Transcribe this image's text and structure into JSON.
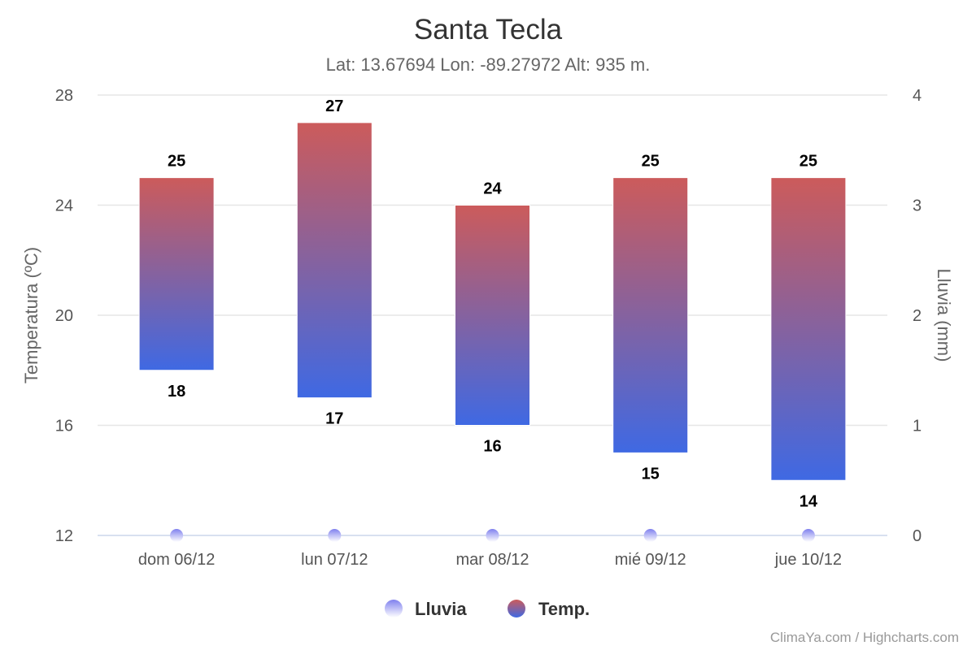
{
  "chart_data": {
    "type": "bar",
    "title": "Santa Tecla",
    "subtitle": "Lat: 13.67694 Lon: -89.27972 Alt: 935 m.",
    "categories": [
      "dom 06/12",
      "lun 07/12",
      "mar 08/12",
      "mié 09/12",
      "jue 10/12"
    ],
    "yaxis_left": {
      "label": "Temperatura (ºC)",
      "range": [
        12,
        28
      ],
      "ticks": [
        12,
        16,
        20,
        24,
        28
      ]
    },
    "yaxis_right": {
      "label": "Lluvia (mm)",
      "range": [
        0,
        4
      ],
      "ticks": [
        0,
        1,
        2,
        3,
        4
      ]
    },
    "series": [
      {
        "name": "Lluvia",
        "type": "scatter",
        "axis": "right",
        "values": [
          0,
          0,
          0,
          0,
          0
        ],
        "color": "#8b8cf0"
      },
      {
        "name": "Temp.",
        "type": "columnrange",
        "axis": "left",
        "low": [
          18,
          17,
          16,
          15,
          14
        ],
        "high": [
          25,
          27,
          24,
          25,
          25
        ],
        "color_top": "#cc5b5b",
        "color_bottom": "#3f69e3"
      }
    ],
    "grid": true,
    "legend": "bottom-center"
  },
  "credits": "ClimaYa.com / Highcharts.com"
}
